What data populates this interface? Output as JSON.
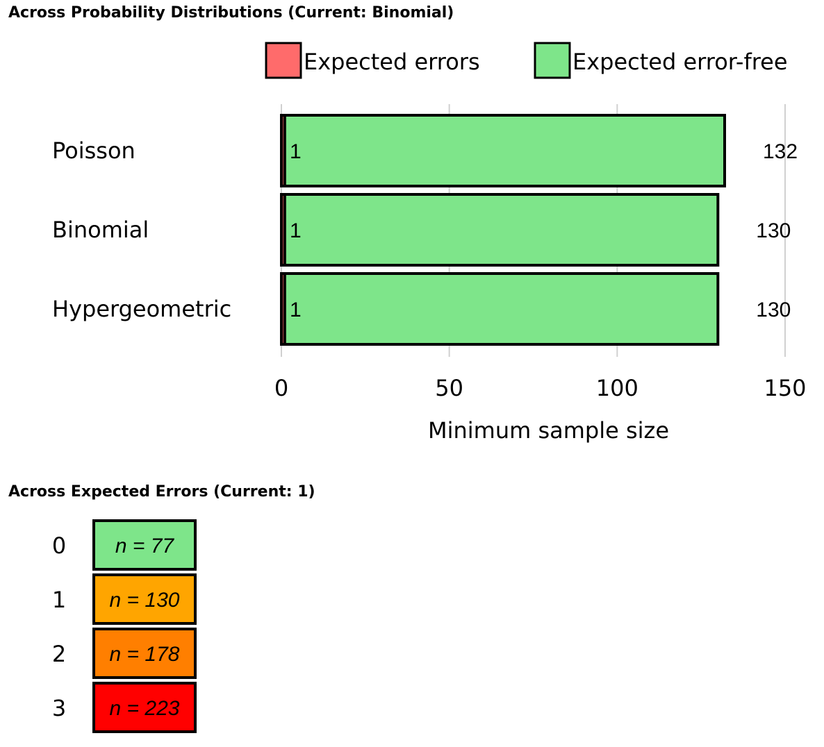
{
  "sections": {
    "distributions_title": "Across Probability Distributions (Current: Binomial)",
    "errors_title": "Across Expected Errors (Current: 1)"
  },
  "chart_data": [
    {
      "type": "bar",
      "orientation": "horizontal",
      "stacked": true,
      "title": "Across Probability Distributions (Current: Binomial)",
      "xlabel": "Minimum sample size",
      "ylabel": "",
      "xlim": [
        0,
        150
      ],
      "xticks": [
        0,
        50,
        100,
        150
      ],
      "grid": true,
      "legend_position": "top-right",
      "categories": [
        "Poisson",
        "Binomial",
        "Hypergeometric"
      ],
      "series": [
        {
          "name": "Expected errors",
          "color": "#ff6b6b",
          "values": [
            1,
            1,
            1
          ],
          "labels": [
            "1",
            "1",
            "1"
          ]
        },
        {
          "name": "Expected error-free",
          "color": "#7ee58a",
          "values": [
            131,
            129,
            129
          ]
        }
      ],
      "totals": [
        132,
        130,
        130
      ],
      "total_labels": [
        "132",
        "130",
        "130"
      ]
    },
    {
      "type": "table",
      "title": "Across Expected Errors (Current: 1)",
      "rows": [
        {
          "label": "0",
          "text": "n = 77",
          "color": "#7ee58a"
        },
        {
          "label": "1",
          "text": "n = 130",
          "color": "#ffa500"
        },
        {
          "label": "2",
          "text": "n = 178",
          "color": "#ff7f00"
        },
        {
          "label": "3",
          "text": "n = 223",
          "color": "#ff0000"
        }
      ]
    }
  ]
}
